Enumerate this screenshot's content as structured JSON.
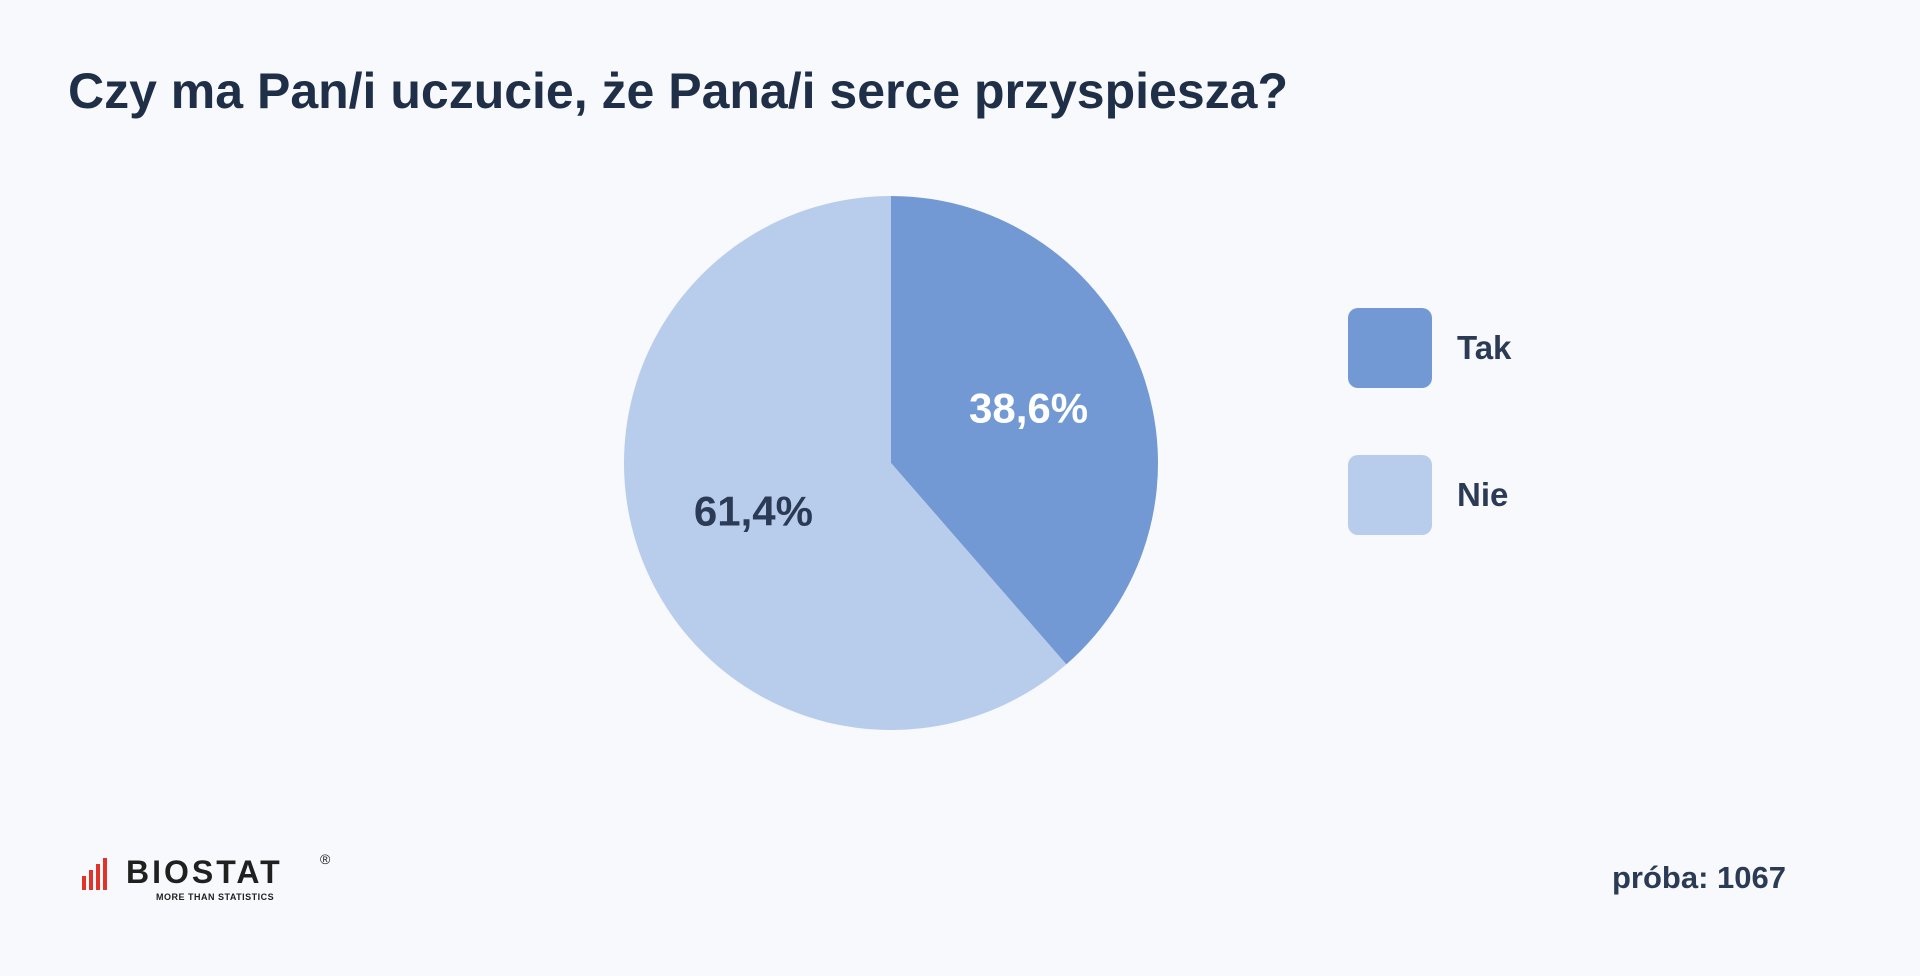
{
  "title": "Czy ma Pan/i uczucie, że Pana/i serce przyspiesza?",
  "sample_label": "próba: 1067",
  "logo": {
    "wordmark": "BIOSTAT",
    "registered": "®",
    "tagline": "MORE THAN STATISTICS",
    "bar_color": "#e0342b"
  },
  "chart_data": {
    "type": "pie",
    "title": "Czy ma Pan/i uczucie, że Pana/i serce przyspiesza?",
    "slices": [
      {
        "label": "Tak",
        "value": 38.6,
        "value_label": "38,6%",
        "color": "#7299d3",
        "label_color": "#ffffff"
      },
      {
        "label": "Nie",
        "value": 61.4,
        "value_label": "61,4%",
        "color": "#b8cdec",
        "label_color": "#2b3a55"
      }
    ],
    "legend": {
      "placement": "right",
      "items": [
        "Tak",
        "Nie"
      ]
    },
    "start_angle": "12 o'clock",
    "direction": "clockwise"
  }
}
